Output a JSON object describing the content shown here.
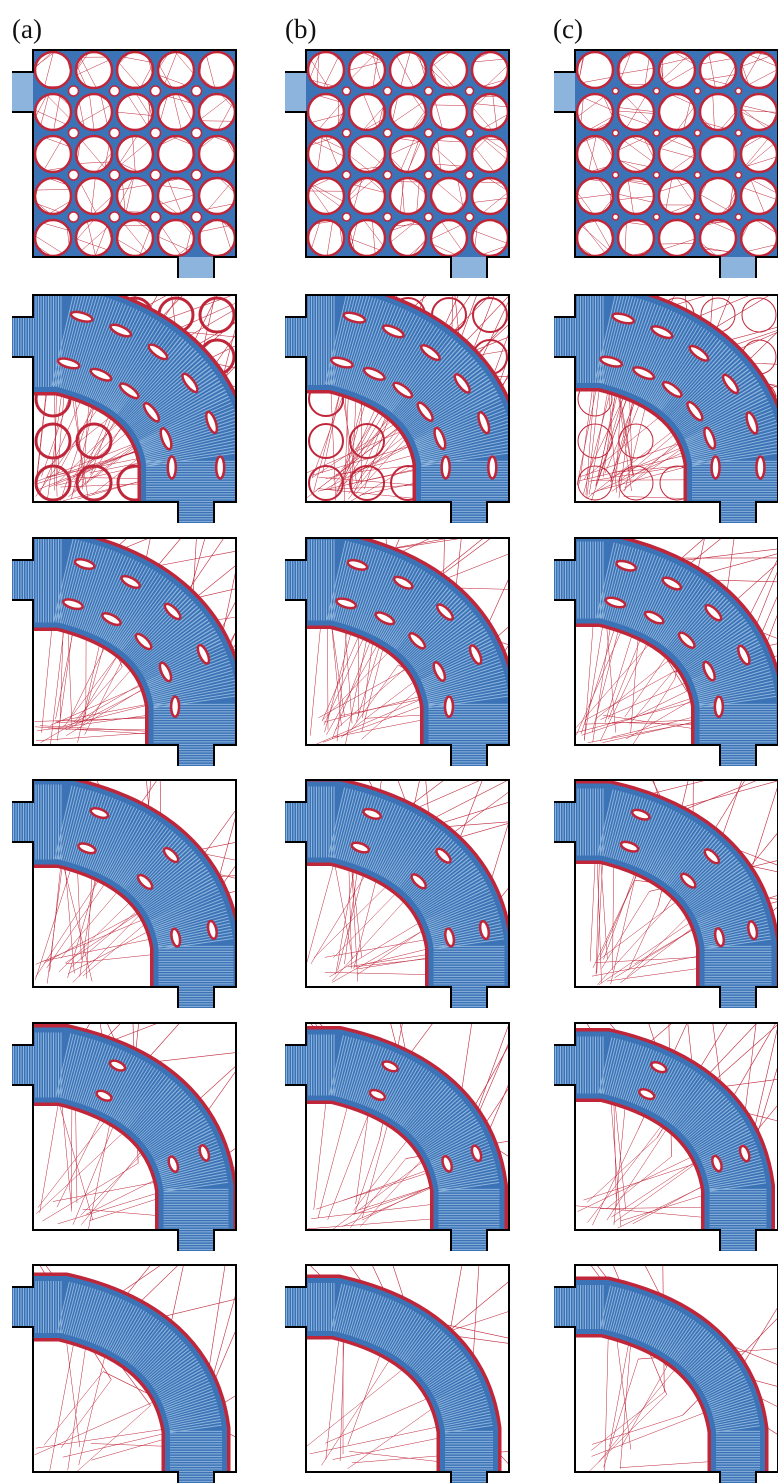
{
  "columns": [
    {
      "label": "(a)"
    },
    {
      "label": "(b)"
    },
    {
      "label": "(c)"
    }
  ]
}
